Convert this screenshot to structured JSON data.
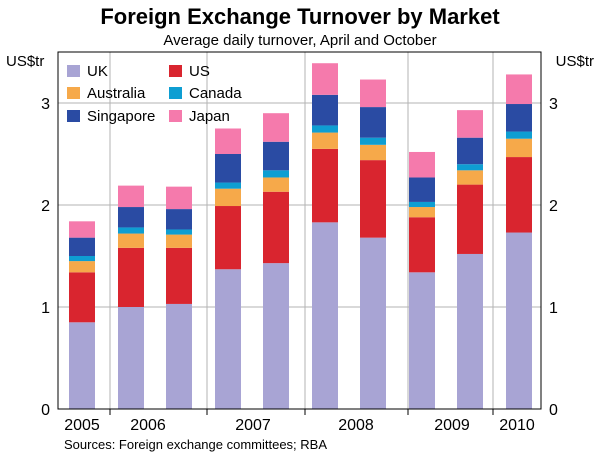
{
  "chart_data": {
    "type": "bar",
    "stacked": true,
    "title": "Foreign Exchange Turnover by Market",
    "subtitle": "Average daily turnover, April and October",
    "ylabel_left": "US$tr",
    "ylabel_right": "US$tr",
    "ylim": [
      0,
      3.5
    ],
    "yticks": [
      0,
      1,
      2,
      3
    ],
    "grid": true,
    "legend_position": "top-left",
    "x_labels": [
      "2005",
      "2006",
      "2007",
      "2008",
      "2009",
      "2010"
    ],
    "categories": [
      "2005-10",
      "2006-04",
      "2006-10",
      "2007-04",
      "2007-10",
      "2008-04",
      "2008-10",
      "2009-04",
      "2009-10",
      "2010-04"
    ],
    "series": [
      {
        "name": "UK",
        "color": "#a8a4d4",
        "values": [
          0.85,
          1.0,
          1.03,
          1.37,
          1.43,
          1.83,
          1.68,
          1.34,
          1.52,
          1.73
        ]
      },
      {
        "name": "US",
        "color": "#d9252f",
        "values": [
          0.49,
          0.58,
          0.55,
          0.62,
          0.7,
          0.72,
          0.76,
          0.54,
          0.68,
          0.74
        ]
      },
      {
        "name": "Australia",
        "color": "#f6a94a",
        "values": [
          0.11,
          0.14,
          0.13,
          0.17,
          0.14,
          0.16,
          0.15,
          0.1,
          0.14,
          0.18
        ]
      },
      {
        "name": "Canada",
        "color": "#0e9ed2",
        "values": [
          0.05,
          0.06,
          0.05,
          0.06,
          0.07,
          0.07,
          0.07,
          0.05,
          0.06,
          0.07
        ]
      },
      {
        "name": "Singapore",
        "color": "#2a4ba3",
        "values": [
          0.18,
          0.2,
          0.2,
          0.28,
          0.28,
          0.3,
          0.3,
          0.24,
          0.26,
          0.27
        ]
      },
      {
        "name": "Japan",
        "color": "#f57aac",
        "values": [
          0.16,
          0.21,
          0.22,
          0.25,
          0.28,
          0.31,
          0.27,
          0.25,
          0.27,
          0.29
        ]
      }
    ],
    "source": "Sources: Foreign exchange committees; RBA"
  }
}
